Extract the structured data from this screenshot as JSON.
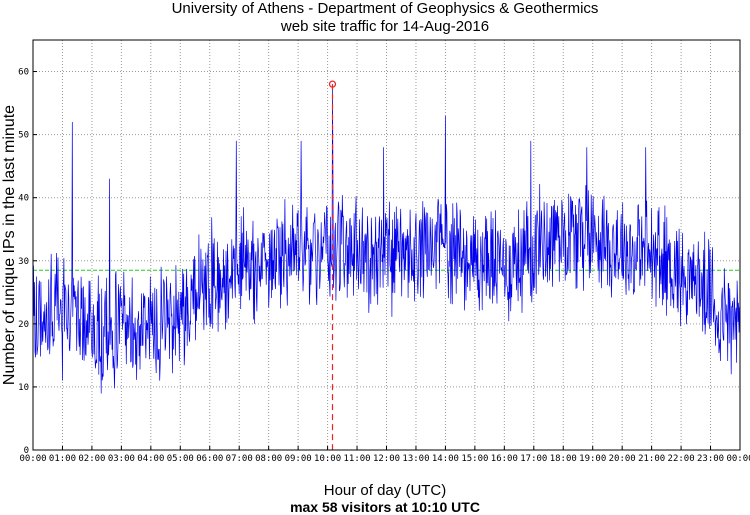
{
  "chart_data": {
    "type": "line",
    "title": "University of Athens - Department of Geophysics & Geothermics",
    "subtitle": "web site traffic for 14-Aug-2016",
    "xlabel": "Hour of day (UTC)",
    "xsublabel": "max 58 visitors at 10:10 UTC",
    "ylabel": "Number of unique IPs in the last minute",
    "x_ticks": [
      "00:00",
      "01:00",
      "02:00",
      "03:00",
      "04:00",
      "05:00",
      "06:00",
      "07:00",
      "08:00",
      "09:00",
      "10:00",
      "11:00",
      "12:00",
      "13:00",
      "14:00",
      "15:00",
      "16:00",
      "17:00",
      "18:00",
      "19:00",
      "20:00",
      "21:00",
      "22:00",
      "23:00",
      "00:00"
    ],
    "y_ticks": [
      "0",
      "10",
      "20",
      "30",
      "40",
      "50",
      "60"
    ],
    "xlim": [
      0,
      24
    ],
    "ylim": [
      0,
      65
    ],
    "grid": true,
    "mean_value": 28.5,
    "max": {
      "hour": 10.1667,
      "value": 58
    },
    "colors": {
      "series": "#0000ee",
      "mean": "#22cc22",
      "max": "#ee2222"
    },
    "series": [
      {
        "hours": [
          0,
          0.5,
          1,
          1.5,
          2,
          2.5,
          3,
          3.5,
          4,
          4.5,
          5,
          5.5,
          6,
          6.5,
          7,
          7.5,
          8,
          8.5,
          9,
          9.5,
          10,
          10.5,
          11,
          11.5,
          12,
          12.5,
          13,
          13.5,
          14,
          14.5,
          15,
          15.5,
          16,
          16.5,
          17,
          17.5,
          18,
          18.5,
          19,
          19.5,
          20,
          20.5,
          21,
          21.5,
          22,
          22.5,
          23,
          23.5,
          24
        ],
        "mean_values": [
          21,
          21,
          24,
          20,
          19,
          18,
          20,
          19,
          20,
          21,
          22,
          25,
          27,
          28,
          29,
          29,
          30,
          31,
          31,
          31,
          32,
          32,
          31,
          31,
          30,
          30,
          31,
          32,
          33,
          31,
          30,
          30,
          29,
          30,
          32,
          34,
          35,
          34,
          35,
          33,
          32,
          31,
          31,
          30,
          28,
          27,
          24,
          21,
          20
        ],
        "peaks": [
          {
            "hour": 1.33,
            "value": 52
          },
          {
            "hour": 2.6,
            "value": 43
          },
          {
            "hour": 6.9,
            "value": 49
          },
          {
            "hour": 9.1,
            "value": 49
          },
          {
            "hour": 10.17,
            "value": 58
          },
          {
            "hour": 11.9,
            "value": 48
          },
          {
            "hour": 14.0,
            "value": 53
          },
          {
            "hour": 16.9,
            "value": 49
          },
          {
            "hour": 18.8,
            "value": 48
          },
          {
            "hour": 20.8,
            "value": 48
          },
          {
            "hour": 4.3,
            "value": 11
          },
          {
            "hour": 1.0,
            "value": 11
          }
        ]
      }
    ]
  }
}
